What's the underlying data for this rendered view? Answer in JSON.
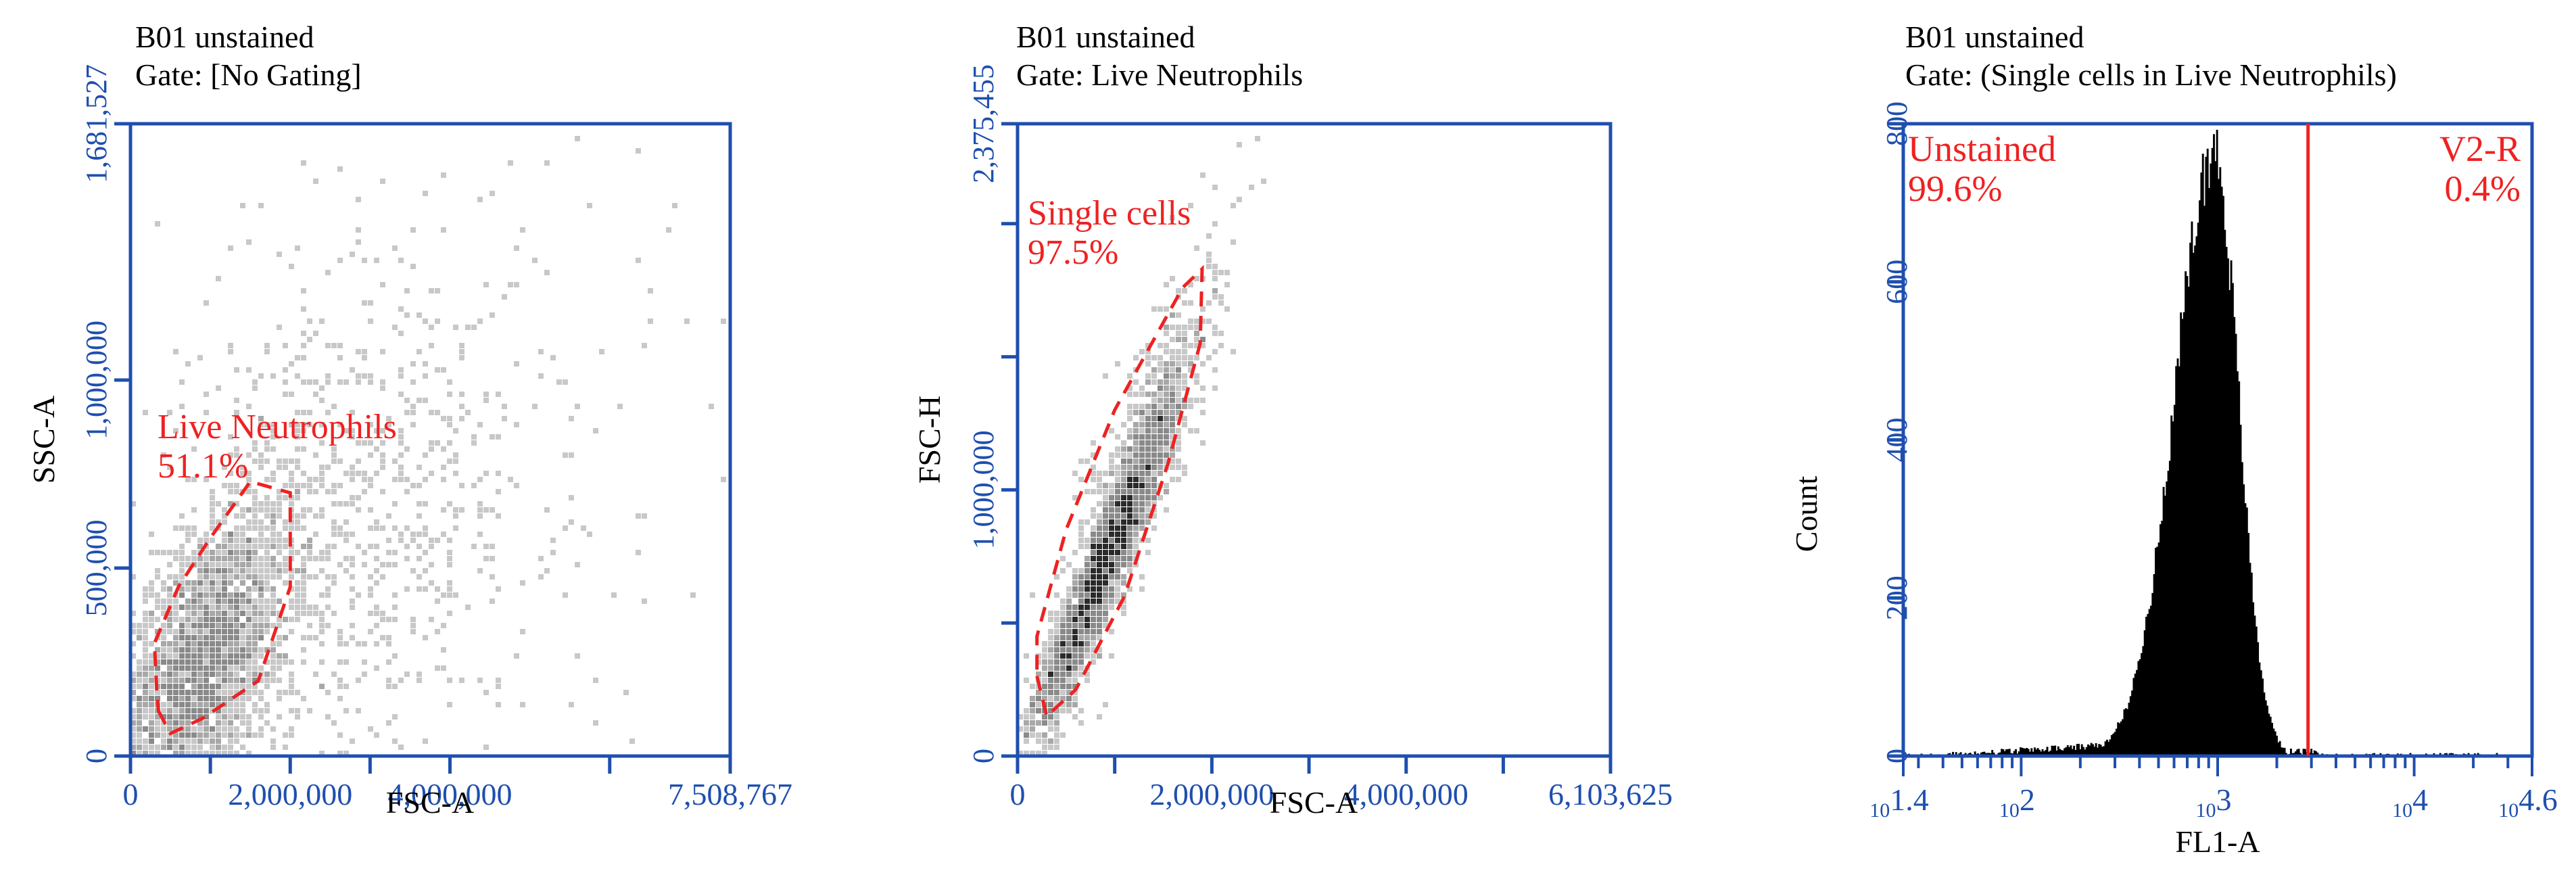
{
  "colors": {
    "axis": "#1f4fae",
    "tick_label": "#1f4fae",
    "text": "#000000",
    "gate": "#ee2222",
    "dot_light": "#c8c8c8",
    "dot_mid": "#8a8a8a",
    "dot_dark": "#2a2a2a",
    "hist_fill": "#000000"
  },
  "panels": [
    {
      "name": "panel-1",
      "sample": "B01 unstained",
      "gate_line": "Gate: [No Gating]"
    },
    {
      "name": "panel-2",
      "sample": "B01 unstained",
      "gate_line": "Gate: Live Neutrophils"
    },
    {
      "name": "panel-3",
      "sample": "B01 unstained",
      "gate_line": "Gate: (Single cells in Live Neutrophils)"
    }
  ],
  "chart_data": [
    {
      "type": "scatter",
      "title": "B01 unstained",
      "subtitle": "Gate: [No Gating]",
      "xlabel": "FSC-A",
      "ylabel": "SSC-A",
      "xlim": [
        0,
        7508767
      ],
      "ylim": [
        0,
        1681527
      ],
      "x_ticks": [
        0,
        2000000,
        4000000,
        7508767
      ],
      "x_tick_labels": [
        "0",
        "2,000,000",
        "4,000,000",
        "7,508,767"
      ],
      "x_minor_ticks": [
        1000000,
        3000000,
        6000000
      ],
      "y_ticks": [
        0,
        500000,
        1000000,
        1681527
      ],
      "y_tick_labels": [
        "0",
        "500,000",
        "1,000,000",
        "1,681,527"
      ],
      "density_clusters": [
        {
          "x_center": 900000,
          "y_center": 250000,
          "x_spread": 550000,
          "y_spread": 200000,
          "count": 2600,
          "corr": 0.55
        },
        {
          "x_center": 2400000,
          "y_center": 500000,
          "x_spread": 1300000,
          "y_spread": 330000,
          "count": 750,
          "corr": 0.3
        },
        {
          "x_center": 3500000,
          "y_center": 900000,
          "x_spread": 2000000,
          "y_spread": 420000,
          "count": 220,
          "corr": 0.0
        }
      ],
      "gate": {
        "name": "Live Neutrophils",
        "percent": "51.1%",
        "vertices": [
          [
            350000,
            120000
          ],
          [
            500000,
            60000
          ],
          [
            900000,
            100000
          ],
          [
            1600000,
            200000
          ],
          [
            2000000,
            450000
          ],
          [
            2000000,
            700000
          ],
          [
            1500000,
            730000
          ],
          [
            1000000,
            580000
          ],
          [
            600000,
            450000
          ],
          [
            300000,
            300000
          ],
          [
            330000,
            170000
          ]
        ]
      }
    },
    {
      "type": "scatter",
      "title": "B01 unstained",
      "subtitle": "Gate: Live Neutrophils",
      "xlabel": "FSC-A",
      "ylabel": "FSC-H",
      "xlim": [
        0,
        6103625
      ],
      "ylim": [
        0,
        2375455
      ],
      "x_ticks": [
        0,
        2000000,
        4000000,
        6103625
      ],
      "x_tick_labels": [
        "0",
        "2,000,000",
        "4,000,000",
        "6,103,625"
      ],
      "x_minor_ticks": [
        1000000,
        3000000,
        5000000
      ],
      "y_ticks": [
        0,
        1000000,
        2375455
      ],
      "y_tick_labels": [
        "0",
        "1,000,000",
        "2,375,455"
      ],
      "y_minor_ticks": [
        500000,
        1500000,
        2000000
      ],
      "density_clusters": [
        {
          "x_center": 900000,
          "y_center": 720000,
          "x_spread": 380000,
          "y_spread": 340000,
          "count": 3000,
          "corr": 0.95
        },
        {
          "x_center": 1250000,
          "y_center": 1100000,
          "x_spread": 400000,
          "y_spread": 380000,
          "count": 600,
          "corr": 0.85
        }
      ],
      "gate": {
        "name": "Single cells",
        "percent": "97.5%",
        "vertices": [
          [
            200000,
            300000
          ],
          [
            300000,
            150000
          ],
          [
            600000,
            250000
          ],
          [
            1100000,
            600000
          ],
          [
            1550000,
            1100000
          ],
          [
            1880000,
            1550000
          ],
          [
            1900000,
            1830000
          ],
          [
            1700000,
            1760000
          ],
          [
            1000000,
            1300000
          ],
          [
            500000,
            850000
          ],
          [
            200000,
            450000
          ]
        ]
      }
    },
    {
      "type": "histogram",
      "title": "B01 unstained",
      "subtitle": "Gate: (Single cells in Live Neutrophils)",
      "xlabel": "FL1-A",
      "ylabel": "Count",
      "x_scale": "log10",
      "xlim_log10": [
        1.4,
        4.6
      ],
      "x_tick_labels": [
        {
          "base": "10",
          "exp": "1.4",
          "log10": 1.4
        },
        {
          "base": "10",
          "exp": "2",
          "log10": 2
        },
        {
          "base": "10",
          "exp": "3",
          "log10": 3
        },
        {
          "base": "10",
          "exp": "4",
          "log10": 4
        },
        {
          "base": "10",
          "exp": "4.6",
          "log10": 4.6
        }
      ],
      "ylim": [
        0,
        800
      ],
      "y_ticks": [
        0,
        200,
        400,
        600,
        800
      ],
      "y_tick_labels": [
        "0",
        "200",
        "400",
        "600",
        "800"
      ],
      "distribution": {
        "peak_log10": 2.98,
        "peak_count": 765,
        "left_sigma": 0.2,
        "right_sigma": 0.12,
        "left_tail_level": 14
      },
      "regions": [
        {
          "name": "Unstained",
          "percent": "99.6%",
          "side": "left"
        },
        {
          "name": "V2-R",
          "percent": "0.4%",
          "side": "right"
        }
      ],
      "divider_log10": 3.46
    }
  ]
}
